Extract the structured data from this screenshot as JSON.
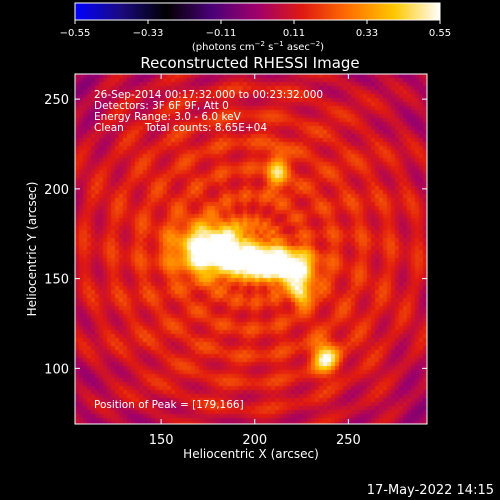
{
  "chart_data": {
    "type": "heatmap",
    "title": "Reconstructed RHESSI Image",
    "xlabel": "Heliocentric X (arcsec)",
    "ylabel": "Heliocentric Y (arcsec)",
    "xlim": [
      104,
      292
    ],
    "ylim": [
      69,
      264
    ],
    "x_ticks": [
      150,
      200,
      250
    ],
    "x_tick_labels": [
      "150",
      "200",
      "250"
    ],
    "y_ticks": [
      100,
      150,
      200,
      250
    ],
    "y_tick_labels": [
      "100",
      "150",
      "200",
      "250"
    ],
    "colorbar": {
      "range": [
        -0.55,
        0.55
      ],
      "ticks": [
        -0.55,
        -0.33,
        -0.11,
        0.11,
        0.33,
        0.55
      ],
      "tick_labels": [
        "−0.55",
        "−0.33",
        "−0.11",
        "0.11",
        "0.33",
        "0.55"
      ],
      "units_parts": {
        "base": "(photons cm",
        "sup1": "−2",
        "mid1": " s",
        "sup2": "−1",
        "mid2": " asec",
        "sup3": "−2",
        "end": ")"
      },
      "colormap_stops": [
        "#0000ff",
        "#1a0a80",
        "#000000",
        "#4a0078",
        "#a0006a",
        "#e01a10",
        "#ff7000",
        "#ffc800",
        "#ffffff"
      ]
    },
    "annotations": {
      "time_range": "26-Sep-2014 00:17:32.000 to 00:23:32.000",
      "detectors": "Detectors: 3F 6F 9F, Att 0",
      "energy_range": "Energy Range: 3.0 - 6.0 keV",
      "clean_label": "Clean",
      "total_counts": "Total counts: 8.65E+04",
      "peak_position": "Position of Peak = [179,166]"
    },
    "sources": [
      {
        "x": 179,
        "y": 166,
        "sigma_x": 14,
        "sigma_y": 10,
        "amp": 0.55
      },
      {
        "x": 205,
        "y": 159,
        "sigma_x": 10,
        "sigma_y": 6,
        "amp": 0.44
      },
      {
        "x": 220,
        "y": 156,
        "sigma_x": 9,
        "sigma_y": 7,
        "amp": 0.4
      },
      {
        "x": 225,
        "y": 142,
        "sigma_x": 4,
        "sigma_y": 5,
        "amp": 0.33
      },
      {
        "x": 238,
        "y": 106,
        "sigma_x": 5,
        "sigma_y": 6,
        "amp": 0.38
      },
      {
        "x": 212,
        "y": 210,
        "sigma_x": 4,
        "sigma_y": 8,
        "amp": 0.28
      }
    ],
    "background_level": 0.16
  },
  "timestamp": "17-May-2022 14:15"
}
